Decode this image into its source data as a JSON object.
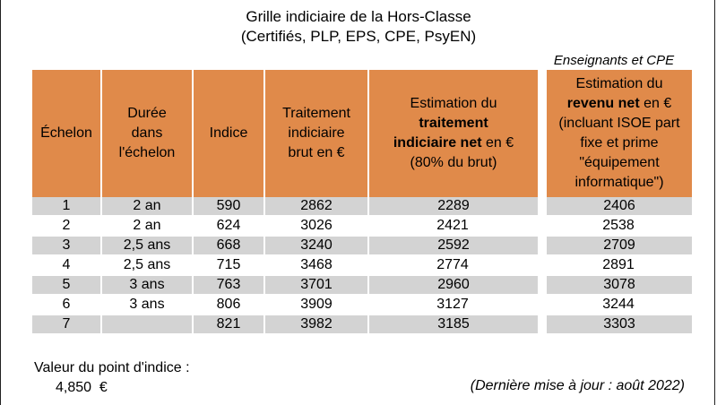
{
  "title": {
    "line1": "Grille indiciaire de la Hors-Classe",
    "line2": "(Certifiés, PLP, EPS, CPE, PsyEN)"
  },
  "side_label": "Enseignants et CPE",
  "headers": {
    "echelon": "Échelon",
    "duree": [
      "Durée",
      "dans",
      "l'échelon"
    ],
    "indice": "Indice",
    "brut": [
      "Traitement",
      "indiciaire",
      "brut en €"
    ],
    "net": {
      "l1": "Estimation du",
      "l2_bold": "traitement",
      "l3_bold": "indiciaire net",
      "l3_rest": " en €",
      "l4": "(80% du brut)"
    },
    "revenu": {
      "l1": "Estimation du",
      "l2_bold": "revenu net",
      "l2_rest": " en €",
      "l3": "(incluant ISOE part",
      "l4": "fixe et prime",
      "l5": "\"équipement",
      "l6": "informatique\")"
    }
  },
  "rows": [
    {
      "echelon": "1",
      "duree": "2 an",
      "indice": "590",
      "brut": "2862",
      "net": "2289",
      "revenu": "2406"
    },
    {
      "echelon": "2",
      "duree": "2 an",
      "indice": "624",
      "brut": "3026",
      "net": "2421",
      "revenu": "2538"
    },
    {
      "echelon": "3",
      "duree": "2,5 ans",
      "indice": "668",
      "brut": "3240",
      "net": "2592",
      "revenu": "2709"
    },
    {
      "echelon": "4",
      "duree": "2,5 ans",
      "indice": "715",
      "brut": "3468",
      "net": "2774",
      "revenu": "2891"
    },
    {
      "echelon": "5",
      "duree": "3 ans",
      "indice": "763",
      "brut": "3701",
      "net": "2960",
      "revenu": "3078"
    },
    {
      "echelon": "6",
      "duree": "3 ans",
      "indice": "806",
      "brut": "3909",
      "net": "3127",
      "revenu": "3244"
    },
    {
      "echelon": "7",
      "duree": "",
      "indice": "821",
      "brut": "3982",
      "net": "3185",
      "revenu": "3303"
    }
  ],
  "footer": {
    "point_label": "Valeur du point d'indice :",
    "point_value": "4,850  €",
    "update": "(Dernière mise à jour : août 2022)"
  },
  "colors": {
    "header": "#e08a4a",
    "row_gray": "#d3d3d3"
  }
}
